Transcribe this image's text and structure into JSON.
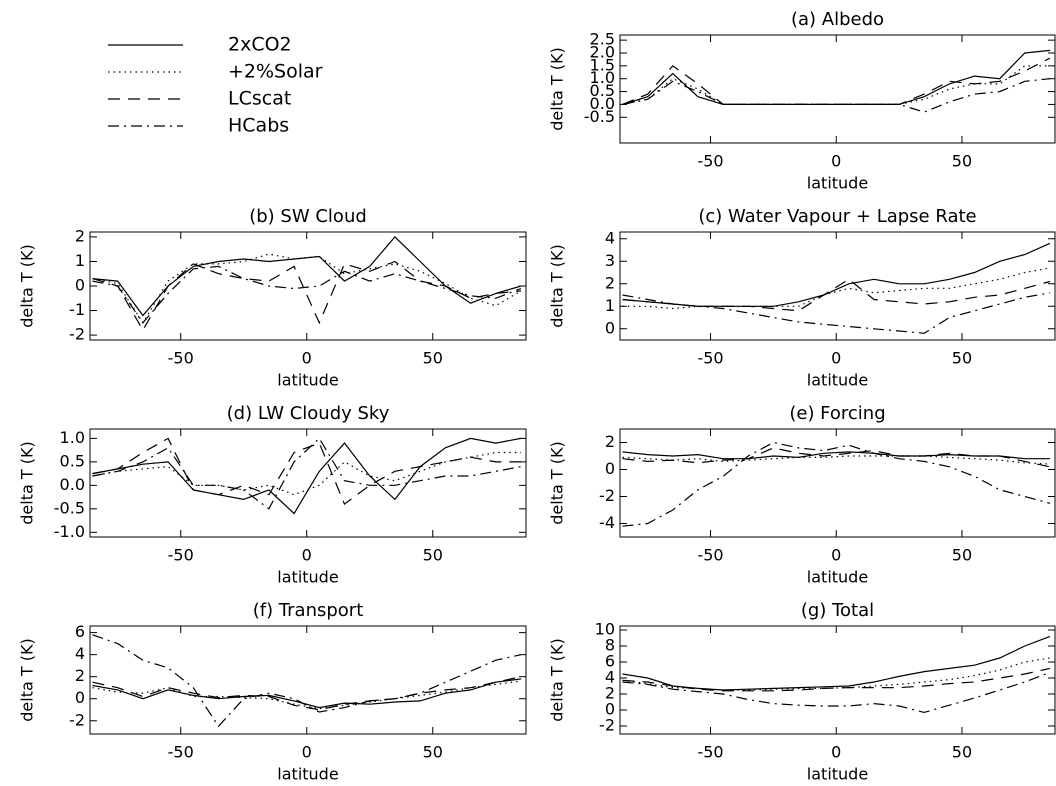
{
  "chart_data": [
    {
      "type": "line",
      "title": "(a) Albedo",
      "xlabel": "latitude",
      "ylabel": "delta T (K)",
      "x": [
        -85,
        -75,
        -65,
        -55,
        -45,
        -35,
        -25,
        -15,
        -5,
        5,
        15,
        25,
        35,
        45,
        55,
        65,
        75,
        85
      ],
      "xlim": [
        -86,
        87
      ],
      "xticks": [
        -50,
        0,
        50
      ],
      "ylim": [
        -1.5,
        2.7
      ],
      "yticks": [
        {
          "value": -0.5,
          "label": "-0.5"
        },
        {
          "value": 0,
          "label": "0.0"
        },
        {
          "value": 0.5,
          "label": "0.5"
        },
        {
          "value": 1,
          "label": "1.0"
        },
        {
          "value": 1.5,
          "label": "1.5"
        },
        {
          "value": 2,
          "label": "2.0"
        },
        {
          "value": 2.5,
          "label": "2.5"
        }
      ],
      "series": [
        {
          "name": "2xCO2",
          "color": "#000000",
          "linestyle": "solid",
          "values": [
            0,
            0.3,
            1.2,
            0.3,
            0,
            0,
            0,
            0,
            0,
            0,
            0,
            0,
            0.3,
            0.8,
            1.1,
            1.0,
            2.0,
            2.1
          ]
        },
        {
          "name": "+2%Solar",
          "color": "#000000",
          "linestyle": "dotted",
          "values": [
            0,
            0.2,
            1.0,
            0.6,
            0,
            0,
            0,
            0,
            0,
            0,
            0,
            0,
            0.2,
            0.6,
            0.8,
            0.8,
            1.5,
            1.5
          ]
        },
        {
          "name": "LCscat",
          "color": "#000000",
          "linestyle": "dashed",
          "values": [
            0,
            0.4,
            1.5,
            0.8,
            0,
            0,
            0,
            0,
            0,
            0,
            0,
            0,
            0.4,
            0.9,
            0.8,
            0.9,
            1.3,
            1.8
          ]
        },
        {
          "name": "HCabs",
          "color": "#000000",
          "linestyle": "dashdot",
          "values": [
            0,
            0.2,
            0.9,
            0.5,
            0,
            0,
            0,
            0,
            0,
            0,
            0,
            0,
            -0.3,
            0.1,
            0.4,
            0.5,
            0.9,
            1.0
          ]
        }
      ]
    },
    {
      "type": "line",
      "title": "(b) SW Cloud",
      "xlabel": "latitude",
      "ylabel": "delta T (K)",
      "x": [
        -85,
        -75,
        -65,
        -55,
        -45,
        -35,
        -25,
        -15,
        -5,
        5,
        15,
        25,
        35,
        45,
        55,
        65,
        75,
        85
      ],
      "xlim": [
        -86,
        87
      ],
      "xticks": [
        -50,
        0,
        50
      ],
      "ylim": [
        -2.2,
        2.2
      ],
      "yticks": [
        -2,
        -1,
        0,
        1,
        2
      ],
      "series": [
        {
          "color": "#000000",
          "linestyle": "solid",
          "values": [
            0.3,
            0.2,
            -1.2,
            0,
            0.8,
            1.0,
            1.1,
            1.0,
            1.1,
            1.2,
            0.2,
            0.8,
            2.0,
            1.0,
            0,
            -0.7,
            -0.3,
            0
          ]
        },
        {
          "color": "#000000",
          "linestyle": "dotted",
          "values": [
            0.3,
            0.1,
            -1.5,
            0.2,
            0.9,
            0.9,
            1.0,
            1.3,
            1.1,
            1.2,
            0.5,
            0.7,
            0.9,
            0.6,
            0.1,
            -0.5,
            -0.8,
            -0.2
          ]
        },
        {
          "color": "#000000",
          "linestyle": "dashed",
          "values": [
            0.3,
            0,
            -1.8,
            0,
            0.9,
            0.5,
            0.3,
            0.2,
            0.8,
            -1.5,
            0.9,
            0.6,
            1.0,
            0.2,
            0,
            -0.5,
            -0.3,
            -0.2
          ]
        },
        {
          "color": "#000000",
          "linestyle": "dashdot",
          "values": [
            0.2,
            0,
            -1.5,
            -0.3,
            0.7,
            0.8,
            0.3,
            0,
            -0.1,
            0,
            0.6,
            0.2,
            0.5,
            0.2,
            -0.1,
            -0.4,
            -0.5,
            -0.1
          ]
        }
      ]
    },
    {
      "type": "line",
      "title": "(c) Water Vapour + Lapse Rate",
      "xlabel": "latitude",
      "ylabel": "delta T (K)",
      "x": [
        -85,
        -75,
        -65,
        -55,
        -45,
        -35,
        -25,
        -15,
        -5,
        5,
        15,
        25,
        35,
        45,
        55,
        65,
        75,
        85
      ],
      "xlim": [
        -86,
        87
      ],
      "xticks": [
        -50,
        0,
        50
      ],
      "ylim": [
        -0.5,
        4.3
      ],
      "yticks": [
        0,
        1,
        2,
        3,
        4
      ],
      "series": [
        {
          "color": "#000000",
          "linestyle": "solid",
          "values": [
            1.3,
            1.2,
            1.1,
            1.0,
            1.0,
            1.0,
            1.0,
            1.2,
            1.5,
            2.0,
            2.2,
            2.0,
            2.0,
            2.2,
            2.5,
            3.0,
            3.3,
            3.8
          ]
        },
        {
          "color": "#000000",
          "linestyle": "dotted",
          "values": [
            1.0,
            1.0,
            0.9,
            1.0,
            1.0,
            1.0,
            1.0,
            1.0,
            1.5,
            1.8,
            1.6,
            1.7,
            1.8,
            1.8,
            2.0,
            2.2,
            2.5,
            2.7
          ]
        },
        {
          "color": "#000000",
          "linestyle": "dashed",
          "values": [
            1.3,
            1.2,
            1.1,
            1.0,
            1.0,
            1.0,
            0.9,
            0.8,
            1.5,
            2.2,
            1.3,
            1.2,
            1.1,
            1.2,
            1.4,
            1.5,
            1.8,
            2.1
          ]
        },
        {
          "color": "#000000",
          "linestyle": "dashdot",
          "values": [
            1.5,
            1.3,
            1.1,
            1.0,
            0.9,
            0.7,
            0.5,
            0.3,
            0.2,
            0.1,
            0.0,
            -0.1,
            -0.2,
            0.5,
            0.8,
            1.1,
            1.4,
            1.6
          ]
        }
      ]
    },
    {
      "type": "line",
      "title": "(d) LW Cloudy Sky",
      "xlabel": "latitude",
      "ylabel": "delta T (K)",
      "x": [
        -85,
        -75,
        -65,
        -55,
        -45,
        -35,
        -25,
        -15,
        -5,
        5,
        15,
        25,
        35,
        45,
        55,
        65,
        75,
        85
      ],
      "xlim": [
        -86,
        87
      ],
      "xticks": [
        -50,
        0,
        50
      ],
      "ylim": [
        -1.1,
        1.2
      ],
      "yticks": [
        {
          "value": -1,
          "label": "-1.0"
        },
        {
          "value": -0.5,
          "label": "-0.5"
        },
        {
          "value": 0,
          "label": "0.0"
        },
        {
          "value": 0.5,
          "label": "0.5"
        },
        {
          "value": 1,
          "label": "1.0"
        }
      ],
      "series": [
        {
          "color": "#000000",
          "linestyle": "solid",
          "values": [
            0.25,
            0.35,
            0.45,
            0.5,
            -0.1,
            -0.2,
            -0.3,
            -0.1,
            -0.6,
            0.3,
            0.9,
            0.2,
            -0.3,
            0.4,
            0.8,
            1.0,
            0.9,
            1.0
          ]
        },
        {
          "color": "#000000",
          "linestyle": "dotted",
          "values": [
            0.2,
            0.3,
            0.35,
            0.4,
            0,
            0,
            -0.1,
            0,
            -0.2,
            0,
            0.5,
            0.2,
            0.1,
            0.3,
            0.5,
            0.6,
            0.7,
            0.7
          ]
        },
        {
          "color": "#000000",
          "linestyle": "dashed",
          "values": [
            0.25,
            0.35,
            0.7,
            1.0,
            -0.1,
            -0.2,
            0,
            -0.2,
            0.7,
            0.9,
            -0.4,
            0,
            0.3,
            0.4,
            0.5,
            0.6,
            0.5,
            0.5
          ]
        },
        {
          "color": "#000000",
          "linestyle": "dashdot",
          "values": [
            0.2,
            0.3,
            0.5,
            0.8,
            0,
            0,
            -0.1,
            -0.5,
            0.5,
            1.0,
            0.1,
            0,
            0,
            0.1,
            0.2,
            0.2,
            0.3,
            0.4
          ]
        }
      ]
    },
    {
      "type": "line",
      "title": "(e) Forcing",
      "xlabel": "latitude",
      "ylabel": "delta T (K)",
      "x": [
        -85,
        -75,
        -65,
        -55,
        -45,
        -35,
        -25,
        -15,
        -5,
        5,
        15,
        25,
        35,
        45,
        55,
        65,
        75,
        85
      ],
      "xlim": [
        -86,
        87
      ],
      "xticks": [
        -50,
        0,
        50
      ],
      "ylim": [
        -5,
        3
      ],
      "yticks": [
        -4,
        -2,
        0,
        2
      ],
      "series": [
        {
          "color": "#000000",
          "linestyle": "solid",
          "values": [
            1.3,
            1.1,
            1.0,
            1.1,
            0.8,
            0.8,
            1.0,
            0.9,
            1.2,
            1.3,
            1.2,
            1.0,
            1.0,
            1.1,
            1.0,
            1.0,
            0.8,
            0.8
          ]
        },
        {
          "color": "#000000",
          "linestyle": "dotted",
          "values": [
            0.9,
            0.8,
            0.7,
            0.8,
            0.6,
            0.7,
            0.8,
            0.9,
            0.9,
            1.0,
            1.0,
            1.0,
            1.0,
            0.9,
            0.8,
            0.7,
            0.5,
            0.4
          ]
        },
        {
          "color": "#000000",
          "linestyle": "dashed",
          "values": [
            0.8,
            0.6,
            0.7,
            0.5,
            0.7,
            0.8,
            1.6,
            1.2,
            1.0,
            1.2,
            1.4,
            1.0,
            1.0,
            1.2,
            1.0,
            1.0,
            0.6,
            0.2
          ]
        },
        {
          "color": "#000000",
          "linestyle": "dashdot",
          "values": [
            -4.2,
            -4.0,
            -3.0,
            -1.5,
            -0.5,
            1.0,
            2.0,
            1.6,
            1.4,
            1.8,
            1.2,
            0.8,
            0.6,
            0.2,
            -0.5,
            -1.5,
            -2.0,
            -2.5
          ]
        }
      ]
    },
    {
      "type": "line",
      "title": "(f) Transport",
      "xlabel": "latitude",
      "ylabel": "delta T (K)",
      "x": [
        -85,
        -75,
        -65,
        -55,
        -45,
        -35,
        -25,
        -15,
        -5,
        5,
        15,
        25,
        35,
        45,
        55,
        65,
        75,
        85
      ],
      "xlim": [
        -86,
        87
      ],
      "xticks": [
        -50,
        0,
        50
      ],
      "ylim": [
        -3.2,
        6.6
      ],
      "yticks": [
        -2,
        0,
        2,
        4,
        6
      ],
      "series": [
        {
          "color": "#000000",
          "linestyle": "solid",
          "values": [
            1.2,
            0.8,
            0,
            0.8,
            0.3,
            0,
            0.2,
            0.3,
            -0.2,
            -0.8,
            -0.4,
            -0.5,
            -0.3,
            -0.2,
            0.5,
            0.8,
            1.5,
            1.8
          ]
        },
        {
          "color": "#000000",
          "linestyle": "dotted",
          "values": [
            1.0,
            0.6,
            0.5,
            1.0,
            0.2,
            0.2,
            0.1,
            0,
            -0.5,
            -0.9,
            -0.6,
            -0.3,
            0,
            0.3,
            0.6,
            1.0,
            1.3,
            1.6
          ]
        },
        {
          "color": "#000000",
          "linestyle": "dashed",
          "values": [
            1.5,
            1.0,
            0.2,
            1.0,
            0.5,
            0.1,
            0.3,
            0.2,
            -0.6,
            -1.0,
            -0.5,
            -0.2,
            0,
            0.5,
            0.8,
            1.0,
            1.5,
            2.0
          ]
        },
        {
          "color": "#000000",
          "linestyle": "dashdot",
          "values": [
            5.8,
            5.0,
            3.5,
            2.8,
            1.0,
            -2.5,
            0,
            0.5,
            0,
            -1.2,
            -0.8,
            -0.2,
            0,
            0.5,
            1.5,
            2.5,
            3.5,
            4.0
          ]
        }
      ]
    },
    {
      "type": "line",
      "title": "(g) Total",
      "xlabel": "latitude",
      "ylabel": "delta T (K)",
      "x": [
        -85,
        -75,
        -65,
        -55,
        -45,
        -35,
        -25,
        -15,
        -5,
        5,
        15,
        25,
        35,
        45,
        55,
        65,
        75,
        85
      ],
      "xlim": [
        -86,
        87
      ],
      "xticks": [
        -50,
        0,
        50
      ],
      "ylim": [
        -3,
        10.5
      ],
      "yticks": [
        -2,
        0,
        2,
        4,
        6,
        8,
        10
      ],
      "series": [
        {
          "color": "#000000",
          "linestyle": "solid",
          "values": [
            4.5,
            4.0,
            3.0,
            2.7,
            2.5,
            2.6,
            2.7,
            2.8,
            2.9,
            3.0,
            3.5,
            4.2,
            4.8,
            5.2,
            5.6,
            6.5,
            8.0,
            9.2
          ]
        },
        {
          "color": "#000000",
          "linestyle": "dotted",
          "values": [
            3.7,
            3.3,
            2.8,
            2.7,
            2.5,
            2.5,
            2.6,
            2.7,
            2.7,
            2.8,
            3.0,
            3.2,
            3.5,
            3.8,
            4.3,
            5.0,
            6.0,
            6.5
          ]
        },
        {
          "color": "#000000",
          "linestyle": "dashed",
          "values": [
            3.7,
            3.5,
            3.0,
            2.6,
            2.4,
            2.4,
            2.4,
            2.5,
            2.7,
            2.8,
            2.8,
            2.8,
            3.0,
            3.3,
            3.5,
            4.0,
            4.5,
            5.2
          ]
        },
        {
          "color": "#000000",
          "linestyle": "dashdot",
          "values": [
            3.5,
            3.2,
            2.6,
            2.3,
            2.0,
            1.3,
            0.8,
            0.6,
            0.5,
            0.5,
            0.8,
            0.5,
            -0.3,
            0.6,
            1.5,
            2.5,
            3.5,
            4.7
          ]
        }
      ]
    }
  ]
}
